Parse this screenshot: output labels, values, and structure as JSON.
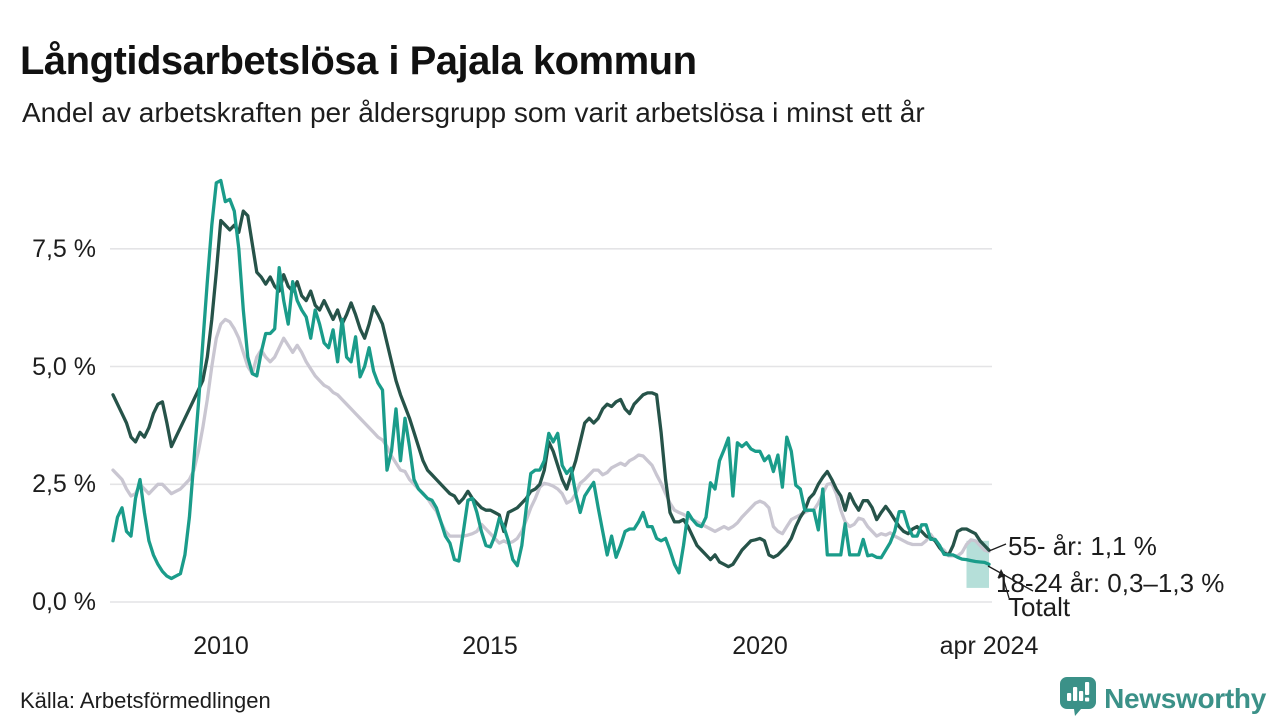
{
  "header": {
    "title": "Långtidsarbetslösa i Pajala kommun",
    "subtitle": "Andel av arbetskraften per åldersgrupp som varit arbetslösa i minst ett år"
  },
  "annotations": {
    "label_55": "55- år: 1,1 %",
    "label_1824": "18-24 år: 0,3–1,3 %",
    "label_total": "Totalt"
  },
  "footer": {
    "source": "Källa: Arbetsförmedlingen",
    "brand": "Newsworthy"
  },
  "colors": {
    "dark_green": "#265349",
    "teal": "#1a9c8a",
    "gray": "#c9c6d1",
    "gridline": "#e4e4e6",
    "band_fill": "#1a9c8a",
    "text": "#1d1d1d",
    "brand_teal": "#3b9188",
    "leader": "#1d1d1d"
  },
  "chart_data": {
    "type": "line",
    "title": "Långtidsarbetslösa i Pajala kommun",
    "subtitle": "Andel av arbetskraften per åldersgrupp som varit arbetslösa i minst ett år",
    "x_start": "2008-01",
    "x_end": "2024-04",
    "x_frequency": "monthly",
    "ylim": [
      0,
      9.3
    ],
    "grid": "horizontal",
    "y_ticks": [
      {
        "value": 0.0,
        "label": "0,0 %"
      },
      {
        "value": 2.5,
        "label": "2,5 %"
      },
      {
        "value": 5.0,
        "label": "5,0 %"
      },
      {
        "value": 7.5,
        "label": "7,5 %"
      }
    ],
    "x_ticks": [
      {
        "index": 24,
        "label": "2010"
      },
      {
        "index": 84,
        "label": "2015"
      },
      {
        "index": 144,
        "label": "2020"
      },
      {
        "index": 195,
        "label": "apr 2024"
      }
    ],
    "highlight_band": {
      "series": "18-24 år",
      "from_index": 190,
      "range": [
        0.3,
        1.3
      ],
      "note": "uncertainty range 0,3–1,3 %"
    },
    "series": [
      {
        "name": "55- år",
        "color": "#265349",
        "end_label": "55- år: 1,1 %",
        "last_value": 1.1,
        "values": [
          4.4,
          4.2,
          4.0,
          3.8,
          3.5,
          3.4,
          3.6,
          3.5,
          3.7,
          4.0,
          4.2,
          4.25,
          3.8,
          3.3,
          3.5,
          3.7,
          3.9,
          4.1,
          4.3,
          4.5,
          4.7,
          5.2,
          6.0,
          7.0,
          8.1,
          8.0,
          7.9,
          8.0,
          7.85,
          8.3,
          8.2,
          7.6,
          7.0,
          6.9,
          6.75,
          6.9,
          6.7,
          6.6,
          6.95,
          6.7,
          6.6,
          6.8,
          6.5,
          6.4,
          6.6,
          6.3,
          6.2,
          6.4,
          6.2,
          6.0,
          6.2,
          5.9,
          6.1,
          6.35,
          6.1,
          5.8,
          5.6,
          5.9,
          6.27,
          6.1,
          5.9,
          5.5,
          5.1,
          4.7,
          4.4,
          4.15,
          3.9,
          3.6,
          3.3,
          3.0,
          2.8,
          2.7,
          2.6,
          2.5,
          2.4,
          2.3,
          2.25,
          2.1,
          2.2,
          2.35,
          2.2,
          2.1,
          2.0,
          1.95,
          1.95,
          1.9,
          1.85,
          1.5,
          1.9,
          1.95,
          2.0,
          2.1,
          2.2,
          2.35,
          2.4,
          2.5,
          2.8,
          3.4,
          3.2,
          2.9,
          2.6,
          2.4,
          2.7,
          3.0,
          3.4,
          3.8,
          3.9,
          3.8,
          3.9,
          4.1,
          4.2,
          4.15,
          4.25,
          4.3,
          4.1,
          4.0,
          4.2,
          4.3,
          4.4,
          4.44,
          4.44,
          4.4,
          3.6,
          2.6,
          1.9,
          1.7,
          1.7,
          1.75,
          1.6,
          1.4,
          1.2,
          1.1,
          1.0,
          0.9,
          1.0,
          0.85,
          0.8,
          0.75,
          0.8,
          0.95,
          1.1,
          1.2,
          1.3,
          1.32,
          1.35,
          1.3,
          1.0,
          0.95,
          1.0,
          1.1,
          1.2,
          1.35,
          1.6,
          1.8,
          1.95,
          2.2,
          2.3,
          2.5,
          2.65,
          2.77,
          2.6,
          2.4,
          2.25,
          1.95,
          2.3,
          2.1,
          1.95,
          2.15,
          2.15,
          2.0,
          1.75,
          1.9,
          2.03,
          1.9,
          1.75,
          1.6,
          1.5,
          1.45,
          1.55,
          1.6,
          1.5,
          1.4,
          1.36,
          1.3,
          1.15,
          1.04,
          1.0,
          1.2,
          1.5,
          1.55,
          1.55,
          1.5,
          1.45,
          1.3,
          1.2,
          1.1
        ]
      },
      {
        "name": "18-24 år",
        "color": "#1a9c8a",
        "end_label": "18-24 år: 0,3–1,3 %",
        "last_value_range": [
          0.3,
          1.3
        ],
        "values": [
          1.3,
          1.8,
          2.0,
          1.5,
          1.4,
          2.2,
          2.6,
          1.9,
          1.3,
          1.0,
          0.8,
          0.65,
          0.55,
          0.5,
          0.55,
          0.6,
          1.0,
          1.8,
          3.0,
          4.2,
          5.5,
          6.8,
          8.0,
          8.9,
          8.95,
          8.5,
          8.55,
          8.3,
          7.5,
          6.2,
          5.2,
          4.85,
          4.8,
          5.3,
          5.7,
          5.7,
          5.8,
          7.1,
          6.4,
          5.9,
          6.8,
          6.4,
          6.2,
          6.05,
          5.6,
          6.2,
          5.9,
          5.5,
          5.4,
          5.78,
          5.1,
          6.0,
          5.2,
          5.1,
          5.63,
          4.78,
          5.0,
          5.4,
          4.9,
          4.65,
          4.5,
          2.8,
          3.2,
          4.1,
          3.0,
          3.9,
          3.3,
          2.6,
          2.4,
          2.3,
          2.2,
          2.16,
          2.0,
          1.7,
          1.4,
          1.25,
          0.9,
          0.87,
          1.5,
          2.16,
          2.2,
          1.9,
          1.5,
          1.2,
          1.17,
          1.4,
          1.78,
          1.6,
          1.3,
          0.9,
          0.77,
          1.2,
          2.0,
          2.73,
          2.8,
          2.8,
          3.0,
          3.58,
          3.4,
          3.58,
          2.9,
          2.73,
          2.84,
          2.3,
          1.9,
          2.25,
          2.4,
          2.54,
          2.0,
          1.5,
          1.0,
          1.4,
          0.95,
          1.2,
          1.5,
          1.55,
          1.55,
          1.7,
          1.9,
          1.6,
          1.6,
          1.35,
          1.3,
          1.35,
          1.1,
          0.8,
          0.62,
          1.2,
          1.9,
          1.75,
          1.64,
          1.6,
          1.8,
          2.53,
          2.4,
          3.0,
          3.23,
          3.48,
          2.25,
          3.38,
          3.3,
          3.38,
          3.25,
          3.2,
          3.2,
          3.0,
          3.1,
          2.77,
          3.12,
          2.44,
          3.5,
          3.2,
          2.48,
          2.4,
          1.95,
          1.95,
          1.95,
          1.53,
          2.4,
          1.0,
          1.0,
          1.0,
          1.0,
          1.66,
          1.0,
          1.0,
          1.0,
          1.33,
          0.98,
          1.0,
          0.95,
          0.94,
          1.1,
          1.26,
          1.5,
          1.92,
          1.92,
          1.6,
          1.4,
          1.4,
          1.64,
          1.64,
          1.33,
          1.33,
          1.2,
          1.01,
          1.0,
          1.0,
          0.95,
          0.91,
          0.9,
          0.88,
          0.86,
          0.85,
          0.84,
          0.8
        ]
      },
      {
        "name": "Totalt",
        "color": "#c9c6d1",
        "end_label": "Totalt",
        "values": [
          2.8,
          2.7,
          2.6,
          2.4,
          2.25,
          2.3,
          2.5,
          2.4,
          2.3,
          2.4,
          2.5,
          2.5,
          2.4,
          2.3,
          2.35,
          2.4,
          2.5,
          2.6,
          2.8,
          3.2,
          3.7,
          4.3,
          5.0,
          5.6,
          5.9,
          6.0,
          5.95,
          5.8,
          5.6,
          5.3,
          5.0,
          4.85,
          5.2,
          5.35,
          5.2,
          5.1,
          5.2,
          5.4,
          5.6,
          5.45,
          5.3,
          5.45,
          5.3,
          5.1,
          4.95,
          4.8,
          4.7,
          4.6,
          4.55,
          4.45,
          4.4,
          4.3,
          4.2,
          4.1,
          4.0,
          3.9,
          3.8,
          3.7,
          3.6,
          3.5,
          3.44,
          3.3,
          3.1,
          2.95,
          2.8,
          2.77,
          2.6,
          2.5,
          2.4,
          2.31,
          2.2,
          2.05,
          1.93,
          1.7,
          1.5,
          1.4,
          1.4,
          1.4,
          1.4,
          1.42,
          1.45,
          1.5,
          1.65,
          1.55,
          1.45,
          1.35,
          1.25,
          1.3,
          1.25,
          1.28,
          1.35,
          1.5,
          1.74,
          2.0,
          2.2,
          2.44,
          2.52,
          2.5,
          2.46,
          2.4,
          2.3,
          2.1,
          2.15,
          2.3,
          2.52,
          2.6,
          2.7,
          2.8,
          2.8,
          2.7,
          2.75,
          2.85,
          2.9,
          2.95,
          2.9,
          3.0,
          3.05,
          3.12,
          3.1,
          3.0,
          2.9,
          2.7,
          2.52,
          2.3,
          2.1,
          1.95,
          1.9,
          1.86,
          1.8,
          1.75,
          1.7,
          1.65,
          1.6,
          1.55,
          1.5,
          1.55,
          1.6,
          1.55,
          1.6,
          1.68,
          1.8,
          1.9,
          2.0,
          2.1,
          2.14,
          2.1,
          2.0,
          1.6,
          1.5,
          1.45,
          1.6,
          1.75,
          1.8,
          1.85,
          1.9,
          1.95,
          1.95,
          2.1,
          2.3,
          2.5,
          2.52,
          2.3,
          1.95,
          1.7,
          1.6,
          1.65,
          1.78,
          1.75,
          1.6,
          1.5,
          1.4,
          1.45,
          1.42,
          1.47,
          1.4,
          1.35,
          1.3,
          1.25,
          1.22,
          1.22,
          1.22,
          1.3,
          1.44,
          1.3,
          1.17,
          1.1,
          0.98,
          0.98,
          0.98,
          1.05,
          1.22,
          1.32,
          1.3,
          1.2,
          1.1,
          1.07
        ]
      }
    ]
  }
}
